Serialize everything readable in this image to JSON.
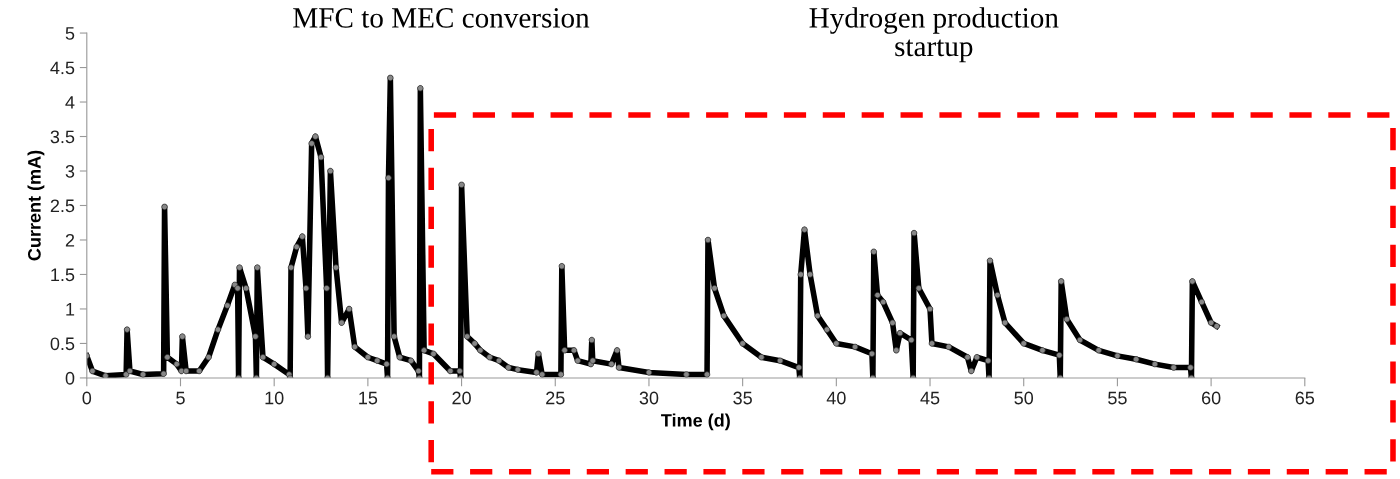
{
  "chart_data": {
    "type": "line",
    "xlabel": "Time (d)",
    "ylabel": "Current (mA)",
    "xlim": [
      0,
      65
    ],
    "xticks": [
      0,
      5,
      10,
      15,
      20,
      25,
      30,
      35,
      40,
      45,
      50,
      55,
      60,
      65
    ],
    "ylim": [
      0,
      5
    ],
    "yticks": [
      0,
      0.5,
      1,
      1.5,
      2,
      2.5,
      3,
      3.5,
      4,
      4.5,
      5
    ],
    "grid": false,
    "legend": false,
    "marker": "circle",
    "line_style": "solid",
    "annotations": [
      "MFC to MEC conversion",
      "Hydrogen production\nstartup"
    ],
    "series": [
      {
        "color": "#000000",
        "x": [
          0,
          0.3,
          1,
          2.1,
          2.15,
          2.3,
          3,
          4.1,
          4.15,
          4.3,
          4.8,
          5.05,
          5.1,
          5.3,
          6,
          6.5,
          7,
          7.5,
          7.9,
          8.05,
          8.1,
          8.15,
          8.5,
          9.0,
          9.05,
          9.1,
          9.4,
          10,
          10.8,
          10.85,
          10.9,
          11.2,
          11.5,
          11.7,
          11.8,
          12,
          12.2,
          12.5,
          12.8,
          12.85,
          13.0,
          13.3,
          13.6,
          14,
          14.3,
          15,
          15.5,
          16.0,
          16.05,
          16.1,
          16.2,
          16.4,
          16.7,
          17.3,
          17.7,
          17.75,
          17.8,
          18.0,
          18.5,
          19.4,
          19.9,
          19.95,
          20.0,
          20.3,
          20.7,
          21,
          21.5,
          22,
          22.5,
          23,
          24,
          24.1,
          24.3,
          25.3,
          25.35,
          25.5,
          26,
          26.2,
          26.9,
          26.95,
          27.0,
          28,
          28.3,
          28.4,
          30,
          32,
          33.1,
          33.15,
          33.5,
          34,
          35,
          36,
          37,
          38.0,
          38.05,
          38.1,
          38.3,
          38.6,
          39,
          39.5,
          40,
          41,
          41.9,
          41.95,
          42.0,
          42.2,
          42.5,
          43,
          43.2,
          43.4,
          44,
          44.1,
          44.15,
          44.4,
          45,
          45.1,
          46,
          47,
          47.2,
          47.5,
          48.1,
          48.15,
          48.2,
          48.6,
          49,
          50,
          51,
          51.9,
          51.95,
          52.0,
          52.3,
          53,
          54,
          55,
          56,
          57,
          58,
          58.9,
          58.95,
          59.0,
          59.5,
          60,
          60.3
        ],
        "values": [
          0.32,
          0.1,
          0.03,
          0.05,
          0.7,
          0.1,
          0.05,
          0.06,
          2.48,
          0.3,
          0.2,
          0.1,
          0.6,
          0.1,
          0.1,
          0.3,
          0.7,
          1.05,
          1.35,
          1.3,
          0.0,
          1.6,
          1.3,
          0.6,
          0.0,
          1.6,
          0.3,
          0.2,
          0.05,
          0.0,
          1.6,
          1.9,
          2.05,
          1.3,
          0.6,
          3.4,
          3.5,
          3.2,
          1.3,
          0.0,
          3.0,
          1.6,
          0.8,
          1.0,
          0.45,
          0.3,
          0.25,
          0.2,
          0.0,
          2.9,
          4.35,
          0.6,
          0.3,
          0.25,
          0.1,
          0.0,
          4.2,
          0.4,
          0.35,
          0.1,
          0.1,
          0.0,
          2.8,
          0.6,
          0.5,
          0.4,
          0.3,
          0.25,
          0.15,
          0.12,
          0.08,
          0.35,
          0.05,
          0.05,
          1.62,
          0.4,
          0.4,
          0.25,
          0.2,
          0.55,
          0.25,
          0.2,
          0.4,
          0.15,
          0.08,
          0.05,
          0.05,
          2.0,
          1.3,
          0.9,
          0.5,
          0.3,
          0.25,
          0.15,
          0.0,
          1.5,
          2.15,
          1.5,
          0.9,
          0.7,
          0.5,
          0.45,
          0.35,
          0.0,
          1.83,
          1.2,
          1.1,
          0.8,
          0.4,
          0.65,
          0.55,
          0.0,
          2.1,
          1.3,
          1.0,
          0.5,
          0.45,
          0.3,
          0.1,
          0.3,
          0.25,
          0.0,
          1.7,
          1.2,
          0.8,
          0.5,
          0.4,
          0.33,
          0.0,
          1.4,
          0.85,
          0.55,
          0.4,
          0.32,
          0.27,
          0.2,
          0.15,
          0.15,
          0.0,
          1.4,
          1.1,
          0.8,
          0.75
        ]
      }
    ]
  }
}
